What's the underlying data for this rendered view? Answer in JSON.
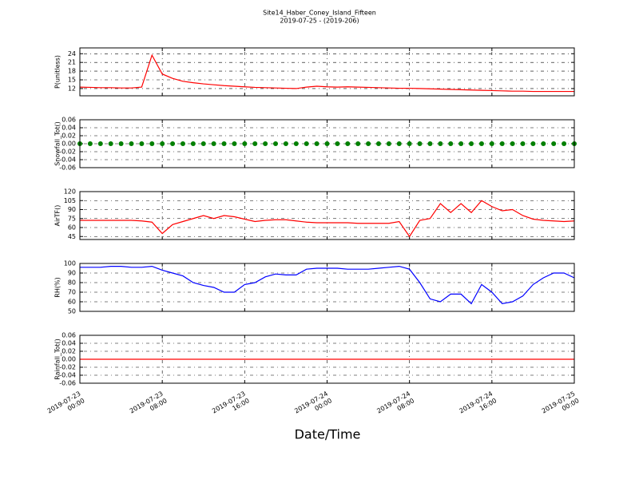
{
  "chart_data": [
    {
      "type": "line",
      "title": "Site14_Haber_Coney_Island_Fifteen",
      "subtitle": "2019-07-25 - (2019-206)",
      "ylabel": "P(unitless)",
      "color": "#ff0000",
      "grid": true,
      "xlim": [
        "2019-07-23 00:00",
        "2019-07-25 00:00"
      ],
      "xticks": [
        "2019-07-23 00:00",
        "2019-07-23 08:00",
        "2019-07-23 16:00",
        "2019-07-24 00:00",
        "2019-07-24 08:00",
        "2019-07-24 16:00",
        "2019-07-25 00:00"
      ],
      "ylim": [
        9.5,
        26
      ],
      "yticks": [
        12,
        15,
        18,
        21,
        24
      ],
      "x": [
        "2019-07-23 00:00",
        "2019-07-23 01:00",
        "2019-07-23 02:00",
        "2019-07-23 03:00",
        "2019-07-23 04:00",
        "2019-07-23 05:00",
        "2019-07-23 06:00",
        "2019-07-23 07:00",
        "2019-07-23 08:00",
        "2019-07-23 09:00",
        "2019-07-23 10:00",
        "2019-07-23 11:00",
        "2019-07-23 12:00",
        "2019-07-23 13:00",
        "2019-07-23 14:00",
        "2019-07-23 15:00",
        "2019-07-23 16:00",
        "2019-07-23 17:00",
        "2019-07-23 18:00",
        "2019-07-23 19:00",
        "2019-07-23 20:00",
        "2019-07-23 21:00",
        "2019-07-23 22:00",
        "2019-07-23 23:00",
        "2019-07-24 00:00",
        "2019-07-24 01:00",
        "2019-07-24 02:00",
        "2019-07-24 03:00",
        "2019-07-24 04:00",
        "2019-07-24 05:00",
        "2019-07-24 06:00",
        "2019-07-24 07:00",
        "2019-07-24 08:00",
        "2019-07-24 09:00",
        "2019-07-24 10:00",
        "2019-07-24 11:00",
        "2019-07-24 12:00",
        "2019-07-24 13:00",
        "2019-07-24 14:00",
        "2019-07-24 15:00",
        "2019-07-24 16:00",
        "2019-07-24 17:00",
        "2019-07-24 18:00",
        "2019-07-24 19:00",
        "2019-07-24 20:00",
        "2019-07-24 21:00",
        "2019-07-24 22:00",
        "2019-07-24 23:00",
        "2019-07-25 00:00"
      ],
      "values": [
        12.5,
        12.4,
        12.3,
        12.3,
        12.2,
        12.2,
        12.5,
        23.5,
        17,
        15.5,
        14.5,
        14,
        13.6,
        13.3,
        13,
        12.8,
        12.6,
        12.4,
        12.3,
        12.2,
        12.1,
        12,
        12.5,
        12.8,
        12.6,
        12.5,
        12.6,
        12.5,
        12.4,
        12.3,
        12.2,
        12.1,
        12.1,
        12,
        11.9,
        11.8,
        11.7,
        11.6,
        11.5,
        11.4,
        11.3,
        11.2,
        11.1,
        11.1,
        11,
        11,
        11,
        11,
        11
      ]
    },
    {
      "type": "scatter",
      "ylabel": "Snowfall_Tot()",
      "color": "#008000",
      "grid": true,
      "xlim": [
        "2019-07-23 00:00",
        "2019-07-25 00:00"
      ],
      "xticks": [
        "2019-07-23 00:00",
        "2019-07-23 08:00",
        "2019-07-23 16:00",
        "2019-07-24 00:00",
        "2019-07-24 08:00",
        "2019-07-24 16:00",
        "2019-07-25 00:00"
      ],
      "ylim": [
        -0.06,
        0.06
      ],
      "yticks": [
        -0.06,
        -0.04,
        -0.02,
        {
          "value": 0,
          "label": "0.00"
        },
        0.02,
        0.04,
        0.06
      ],
      "x": [
        "2019-07-23 00:00",
        "2019-07-23 01:00",
        "2019-07-23 02:00",
        "2019-07-23 03:00",
        "2019-07-23 04:00",
        "2019-07-23 05:00",
        "2019-07-23 06:00",
        "2019-07-23 07:00",
        "2019-07-23 08:00",
        "2019-07-23 09:00",
        "2019-07-23 10:00",
        "2019-07-23 11:00",
        "2019-07-23 12:00",
        "2019-07-23 13:00",
        "2019-07-23 14:00",
        "2019-07-23 15:00",
        "2019-07-23 16:00",
        "2019-07-23 17:00",
        "2019-07-23 18:00",
        "2019-07-23 19:00",
        "2019-07-23 20:00",
        "2019-07-23 21:00",
        "2019-07-23 22:00",
        "2019-07-23 23:00",
        "2019-07-24 00:00",
        "2019-07-24 01:00",
        "2019-07-24 02:00",
        "2019-07-24 03:00",
        "2019-07-24 04:00",
        "2019-07-24 05:00",
        "2019-07-24 06:00",
        "2019-07-24 07:00",
        "2019-07-24 08:00",
        "2019-07-24 09:00",
        "2019-07-24 10:00",
        "2019-07-24 11:00",
        "2019-07-24 12:00",
        "2019-07-24 13:00",
        "2019-07-24 14:00",
        "2019-07-24 15:00",
        "2019-07-24 16:00",
        "2019-07-24 17:00",
        "2019-07-24 18:00",
        "2019-07-24 19:00",
        "2019-07-24 20:00",
        "2019-07-24 21:00",
        "2019-07-24 22:00",
        "2019-07-24 23:00",
        "2019-07-25 00:00"
      ],
      "values": [
        0,
        0,
        0,
        0,
        0,
        0,
        0,
        0,
        0,
        0,
        0,
        0,
        0,
        0,
        0,
        0,
        0,
        0,
        0,
        0,
        0,
        0,
        0,
        0,
        0,
        0,
        0,
        0,
        0,
        0,
        0,
        0,
        0,
        0,
        0,
        0,
        0,
        0,
        0,
        0,
        0,
        0,
        0,
        0,
        0,
        0,
        0,
        0,
        0
      ]
    },
    {
      "type": "line",
      "ylabel": "AirTF()",
      "color": "#ff0000",
      "grid": true,
      "xlim": [
        "2019-07-23 00:00",
        "2019-07-25 00:00"
      ],
      "xticks": [
        "2019-07-23 00:00",
        "2019-07-23 08:00",
        "2019-07-23 16:00",
        "2019-07-24 00:00",
        "2019-07-24 08:00",
        "2019-07-24 16:00",
        "2019-07-25 00:00"
      ],
      "ylim": [
        40,
        120
      ],
      "yticks": [
        45,
        60,
        75,
        90,
        105,
        120
      ],
      "x": [
        "2019-07-23 00:00",
        "2019-07-23 01:00",
        "2019-07-23 02:00",
        "2019-07-23 03:00",
        "2019-07-23 04:00",
        "2019-07-23 05:00",
        "2019-07-23 06:00",
        "2019-07-23 07:00",
        "2019-07-23 08:00",
        "2019-07-23 09:00",
        "2019-07-23 10:00",
        "2019-07-23 11:00",
        "2019-07-23 12:00",
        "2019-07-23 13:00",
        "2019-07-23 14:00",
        "2019-07-23 15:00",
        "2019-07-23 16:00",
        "2019-07-23 17:00",
        "2019-07-23 18:00",
        "2019-07-23 19:00",
        "2019-07-23 20:00",
        "2019-07-23 21:00",
        "2019-07-23 22:00",
        "2019-07-23 23:00",
        "2019-07-24 00:00",
        "2019-07-24 01:00",
        "2019-07-24 02:00",
        "2019-07-24 03:00",
        "2019-07-24 04:00",
        "2019-07-24 05:00",
        "2019-07-24 06:00",
        "2019-07-24 07:00",
        "2019-07-24 08:00",
        "2019-07-24 09:00",
        "2019-07-24 10:00",
        "2019-07-24 11:00",
        "2019-07-24 12:00",
        "2019-07-24 13:00",
        "2019-07-24 14:00",
        "2019-07-24 15:00",
        "2019-07-24 16:00",
        "2019-07-24 17:00",
        "2019-07-24 18:00",
        "2019-07-24 19:00",
        "2019-07-24 20:00",
        "2019-07-24 21:00",
        "2019-07-24 22:00",
        "2019-07-24 23:00",
        "2019-07-25 00:00"
      ],
      "values": [
        72,
        72,
        72,
        72,
        72,
        72,
        71,
        69,
        50,
        65,
        70,
        75,
        80,
        75,
        80,
        78,
        74,
        70,
        72,
        73,
        73,
        71,
        69,
        68,
        68,
        68,
        68,
        67,
        67,
        67,
        67,
        70,
        45,
        72,
        75,
        100,
        85,
        100,
        85,
        105,
        95,
        88,
        90,
        80,
        74,
        72,
        71,
        70,
        71
      ]
    },
    {
      "type": "line",
      "ylabel": "RH(%)",
      "color": "#0000ff",
      "grid": true,
      "xlim": [
        "2019-07-23 00:00",
        "2019-07-25 00:00"
      ],
      "xticks": [
        "2019-07-23 00:00",
        "2019-07-23 08:00",
        "2019-07-23 16:00",
        "2019-07-24 00:00",
        "2019-07-24 08:00",
        "2019-07-24 16:00",
        "2019-07-25 00:00"
      ],
      "ylim": [
        50,
        100
      ],
      "yticks": [
        50,
        60,
        70,
        80,
        90,
        100
      ],
      "x": [
        "2019-07-23 00:00",
        "2019-07-23 01:00",
        "2019-07-23 02:00",
        "2019-07-23 03:00",
        "2019-07-23 04:00",
        "2019-07-23 05:00",
        "2019-07-23 06:00",
        "2019-07-23 07:00",
        "2019-07-23 08:00",
        "2019-07-23 09:00",
        "2019-07-23 10:00",
        "2019-07-23 11:00",
        "2019-07-23 12:00",
        "2019-07-23 13:00",
        "2019-07-23 14:00",
        "2019-07-23 15:00",
        "2019-07-23 16:00",
        "2019-07-23 17:00",
        "2019-07-23 18:00",
        "2019-07-23 19:00",
        "2019-07-23 20:00",
        "2019-07-23 21:00",
        "2019-07-23 22:00",
        "2019-07-23 23:00",
        "2019-07-24 00:00",
        "2019-07-24 01:00",
        "2019-07-24 02:00",
        "2019-07-24 03:00",
        "2019-07-24 04:00",
        "2019-07-24 05:00",
        "2019-07-24 06:00",
        "2019-07-24 07:00",
        "2019-07-24 08:00",
        "2019-07-24 09:00",
        "2019-07-24 10:00",
        "2019-07-24 11:00",
        "2019-07-24 12:00",
        "2019-07-24 13:00",
        "2019-07-24 14:00",
        "2019-07-24 15:00",
        "2019-07-24 16:00",
        "2019-07-24 17:00",
        "2019-07-24 18:00",
        "2019-07-24 19:00",
        "2019-07-24 20:00",
        "2019-07-24 21:00",
        "2019-07-24 22:00",
        "2019-07-24 23:00",
        "2019-07-25 00:00"
      ],
      "values": [
        96,
        96,
        96,
        97,
        97,
        96,
        96,
        97,
        93,
        90,
        87,
        80,
        77,
        75,
        70,
        70,
        78,
        80,
        86,
        89,
        88,
        88,
        94,
        95,
        95,
        95,
        94,
        94,
        94,
        95,
        96,
        97,
        94,
        80,
        63,
        60,
        68,
        68,
        58,
        78,
        70,
        58,
        60,
        66,
        78,
        85,
        90,
        90,
        85
      ]
    },
    {
      "type": "line",
      "ylabel": "Rainfall_Tot()",
      "xlabel": "Date/Time",
      "color": "#ff0000",
      "grid": true,
      "xlim": [
        "2019-07-23 00:00",
        "2019-07-25 00:00"
      ],
      "xticks": [
        "2019-07-23 00:00",
        "2019-07-23 08:00",
        "2019-07-23 16:00",
        "2019-07-24 00:00",
        "2019-07-24 08:00",
        "2019-07-24 16:00",
        "2019-07-25 00:00"
      ],
      "ylim": [
        -0.06,
        0.06
      ],
      "yticks": [
        -0.06,
        -0.04,
        -0.02,
        {
          "value": 0,
          "label": "0.00"
        },
        0.02,
        0.04,
        0.06
      ],
      "x": [
        "2019-07-23 00:00",
        "2019-07-23 01:00",
        "2019-07-23 02:00",
        "2019-07-23 03:00",
        "2019-07-23 04:00",
        "2019-07-23 05:00",
        "2019-07-23 06:00",
        "2019-07-23 07:00",
        "2019-07-23 08:00",
        "2019-07-23 09:00",
        "2019-07-23 10:00",
        "2019-07-23 11:00",
        "2019-07-23 12:00",
        "2019-07-23 13:00",
        "2019-07-23 14:00",
        "2019-07-23 15:00",
        "2019-07-23 16:00",
        "2019-07-23 17:00",
        "2019-07-23 18:00",
        "2019-07-23 19:00",
        "2019-07-23 20:00",
        "2019-07-23 21:00",
        "2019-07-23 22:00",
        "2019-07-23 23:00",
        "2019-07-24 00:00",
        "2019-07-24 01:00",
        "2019-07-24 02:00",
        "2019-07-24 03:00",
        "2019-07-24 04:00",
        "2019-07-24 05:00",
        "2019-07-24 06:00",
        "2019-07-24 07:00",
        "2019-07-24 08:00",
        "2019-07-24 09:00",
        "2019-07-24 10:00",
        "2019-07-24 11:00",
        "2019-07-24 12:00",
        "2019-07-24 13:00",
        "2019-07-24 14:00",
        "2019-07-24 15:00",
        "2019-07-24 16:00",
        "2019-07-24 17:00",
        "2019-07-24 18:00",
        "2019-07-24 19:00",
        "2019-07-24 20:00",
        "2019-07-24 21:00",
        "2019-07-24 22:00",
        "2019-07-24 23:00",
        "2019-07-25 00:00"
      ],
      "values": [
        0,
        0,
        0,
        0,
        0,
        0,
        0,
        0,
        0,
        0,
        0,
        0,
        0,
        0,
        0,
        0,
        0,
        0,
        0,
        0,
        0,
        0,
        0,
        0,
        0,
        0,
        0,
        0,
        0,
        0,
        0,
        0,
        0,
        0,
        0,
        0,
        0,
        0,
        0,
        0,
        0,
        0,
        0,
        0,
        0,
        0,
        0,
        0,
        0
      ]
    }
  ]
}
